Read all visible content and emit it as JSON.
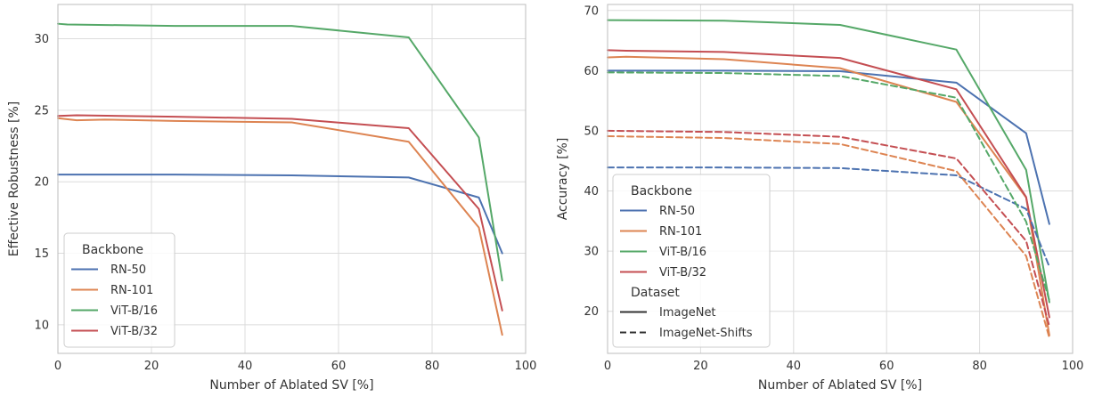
{
  "chart_data": [
    {
      "type": "line",
      "title": "",
      "xlabel": "Number of Ablated SV [%]",
      "ylabel": "Effective Robustness [%]",
      "xlim": [
        0,
        100
      ],
      "ylim": [
        8,
        32.4
      ],
      "xticks": [
        "0",
        "20",
        "40",
        "60",
        "80",
        "100"
      ],
      "yticks": [
        "10",
        "15",
        "20",
        "25",
        "30"
      ],
      "grid": true,
      "legend": {
        "placement": "lower-left",
        "title": "Backbone",
        "entries": [
          "RN-50",
          "RN-101",
          "ViT-B/16",
          "ViT-B/32"
        ]
      },
      "series": [
        {
          "name": "RN-50",
          "color": "#4c72b0",
          "dash": "solid",
          "x": [
            0,
            25,
            50,
            75,
            90,
            95
          ],
          "y": [
            20.5,
            20.5,
            20.45,
            20.3,
            18.9,
            15.0
          ]
        },
        {
          "name": "RN-101",
          "color": "#dd8452",
          "dash": "solid",
          "x": [
            0,
            4,
            10,
            25,
            50,
            75,
            90,
            95
          ],
          "y": [
            24.45,
            24.3,
            24.35,
            24.25,
            24.15,
            22.8,
            16.8,
            9.3
          ]
        },
        {
          "name": "ViT-B/16",
          "color": "#55a868",
          "dash": "solid",
          "x": [
            0,
            2,
            25,
            50,
            75,
            90,
            95
          ],
          "y": [
            31.05,
            31.0,
            30.9,
            30.9,
            30.1,
            23.1,
            13.1
          ]
        },
        {
          "name": "ViT-B/32",
          "color": "#c44e52",
          "dash": "solid",
          "x": [
            0,
            4,
            25,
            50,
            75,
            90,
            95
          ],
          "y": [
            24.6,
            24.65,
            24.55,
            24.4,
            23.75,
            18.1,
            11.0
          ]
        }
      ]
    },
    {
      "type": "line",
      "title": "",
      "xlabel": "Number of Ablated SV [%]",
      "ylabel": "Accuracy [%]",
      "xlim": [
        0,
        100
      ],
      "ylim": [
        13,
        71
      ],
      "xticks": [
        "0",
        "20",
        "40",
        "60",
        "80",
        "100"
      ],
      "yticks": [
        "20",
        "30",
        "40",
        "50",
        "60",
        "70"
      ],
      "grid": true,
      "legend": {
        "placement": "lower-left",
        "title": "Backbone",
        "entries": [
          "RN-50",
          "RN-101",
          "ViT-B/16",
          "ViT-B/32"
        ],
        "title2": "Dataset",
        "entries2": [
          "ImageNet",
          "ImageNet-Shifts"
        ]
      },
      "series": [
        {
          "name": "RN-50",
          "dataset": "ImageNet",
          "color": "#4c72b0",
          "dash": "solid",
          "x": [
            0,
            25,
            50,
            75,
            90,
            95
          ],
          "y": [
            60.0,
            60.0,
            59.9,
            58.0,
            49.6,
            34.5
          ]
        },
        {
          "name": "RN-101",
          "dataset": "ImageNet",
          "color": "#dd8452",
          "dash": "solid",
          "x": [
            0,
            4,
            25,
            50,
            75,
            90,
            95
          ],
          "y": [
            62.2,
            62.3,
            61.9,
            60.4,
            54.8,
            38.9,
            16.0
          ]
        },
        {
          "name": "ViT-B/16",
          "dataset": "ImageNet",
          "color": "#55a868",
          "dash": "solid",
          "x": [
            0,
            25,
            50,
            75,
            90,
            95
          ],
          "y": [
            68.4,
            68.3,
            67.6,
            63.5,
            43.5,
            21.5
          ]
        },
        {
          "name": "ViT-B/32",
          "dataset": "ImageNet",
          "color": "#c44e52",
          "dash": "solid",
          "x": [
            0,
            4,
            25,
            50,
            75,
            90,
            95
          ],
          "y": [
            63.4,
            63.3,
            63.1,
            62.1,
            56.9,
            39.0,
            19.0
          ]
        },
        {
          "name": "RN-50",
          "dataset": "ImageNet-Shifts",
          "color": "#4c72b0",
          "dash": "dashed",
          "x": [
            0,
            25,
            50,
            75,
            90,
            95
          ],
          "y": [
            43.9,
            43.9,
            43.8,
            42.6,
            37.0,
            27.4
          ]
        },
        {
          "name": "RN-101",
          "dataset": "ImageNet-Shifts",
          "color": "#dd8452",
          "dash": "dashed",
          "x": [
            0,
            25,
            50,
            75,
            90,
            95
          ],
          "y": [
            49.1,
            48.8,
            47.8,
            43.3,
            29.2,
            15.6
          ]
        },
        {
          "name": "ViT-B/16",
          "dataset": "ImageNet-Shifts",
          "color": "#55a868",
          "dash": "dashed",
          "x": [
            0,
            25,
            50,
            75,
            90,
            95
          ],
          "y": [
            59.7,
            59.6,
            59.1,
            55.5,
            34.9,
            21.8
          ]
        },
        {
          "name": "ViT-B/32",
          "dataset": "ImageNet-Shifts",
          "color": "#c44e52",
          "dash": "dashed",
          "x": [
            0,
            25,
            50,
            75,
            90,
            95
          ],
          "y": [
            50.0,
            49.8,
            49.0,
            45.4,
            31.7,
            17.5
          ]
        }
      ]
    }
  ]
}
